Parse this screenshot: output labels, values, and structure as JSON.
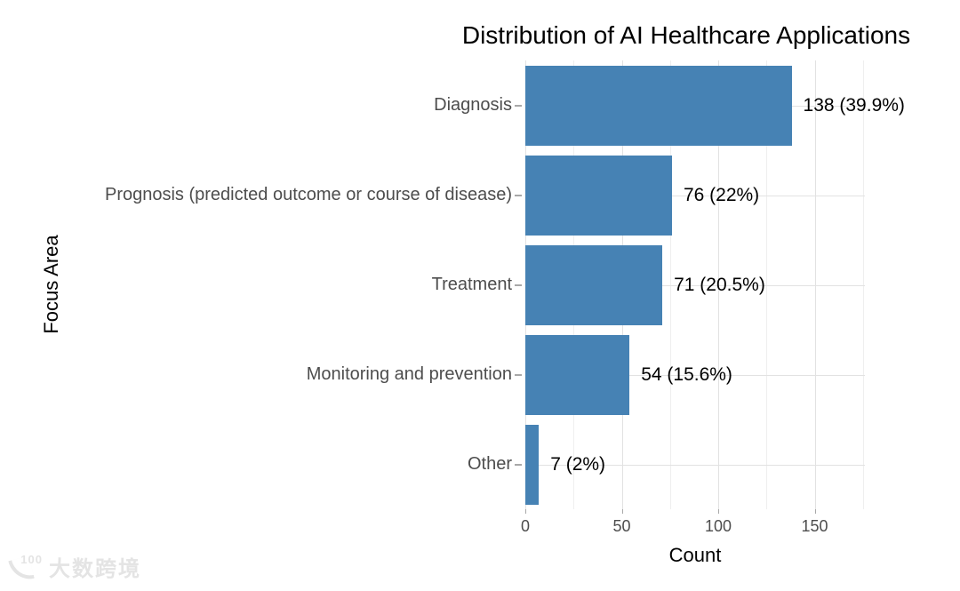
{
  "title": "Distribution of AI Healthcare Applications",
  "chart_data": {
    "type": "bar",
    "orientation": "horizontal",
    "title": "Distribution of AI Healthcare Applications",
    "xlabel": "Count",
    "ylabel": "Focus Area",
    "categories": [
      "Diagnosis",
      "Prognosis (predicted outcome or course of disease)",
      "Treatment",
      "Monitoring and prevention",
      "Other"
    ],
    "values": [
      138,
      76,
      71,
      54,
      7
    ],
    "percentages": [
      39.9,
      22,
      20.5,
      15.6,
      2
    ],
    "value_labels": [
      "138 (39.9%)",
      "76 (22%)",
      "71 (20.5%)",
      "54 (15.6%)",
      "7 (2%)"
    ],
    "xlim": [
      0,
      176
    ],
    "x_major_ticks": [
      0,
      50,
      100,
      150
    ],
    "x_tick_labels": [
      "0",
      "50",
      "100",
      "150"
    ],
    "x_minor_ticks": [
      25,
      75,
      125,
      175
    ],
    "grid": "on",
    "legend": "none",
    "bar_color": "#4682B4"
  },
  "colors": {
    "background": "#FFFFFF",
    "bar": "#4682B4",
    "grid_major": "#E2E2E2",
    "grid_minor": "#EFEFEF",
    "axis_text": "#4D4D4D",
    "text": "#000000",
    "tick": "#A8A8A8",
    "watermark": "#E4E4E4"
  },
  "watermark": {
    "logo_text": "100",
    "brand_text": "大数跨境"
  }
}
